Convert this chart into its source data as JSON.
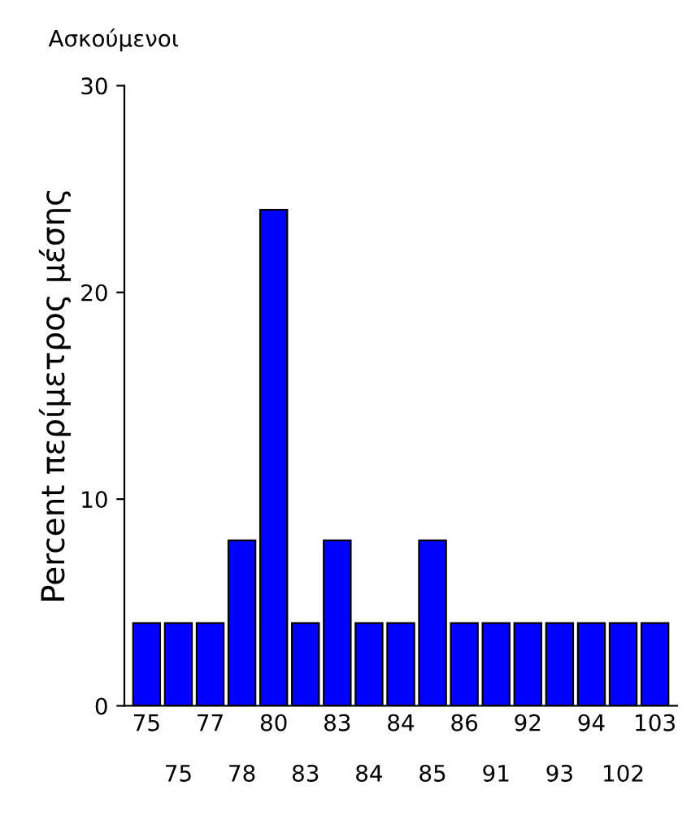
{
  "chart_data": {
    "type": "bar",
    "title": "Ασκούμενοι",
    "ylabel": "Percent περίμετρος μέσης",
    "categories": [
      "75",
      "75",
      "77",
      "78",
      "80",
      "83",
      "83",
      "84",
      "84",
      "85",
      "86",
      "91",
      "92",
      "93",
      "94",
      "102",
      "103"
    ],
    "values": [
      4,
      4,
      4,
      8,
      24,
      4,
      8,
      4,
      4,
      8,
      4,
      4,
      4,
      4,
      4,
      4,
      4
    ],
    "color": "#0000ff",
    "ylim": [
      0,
      30
    ],
    "yticks": [
      0,
      10,
      20,
      30
    ],
    "grid": false
  }
}
